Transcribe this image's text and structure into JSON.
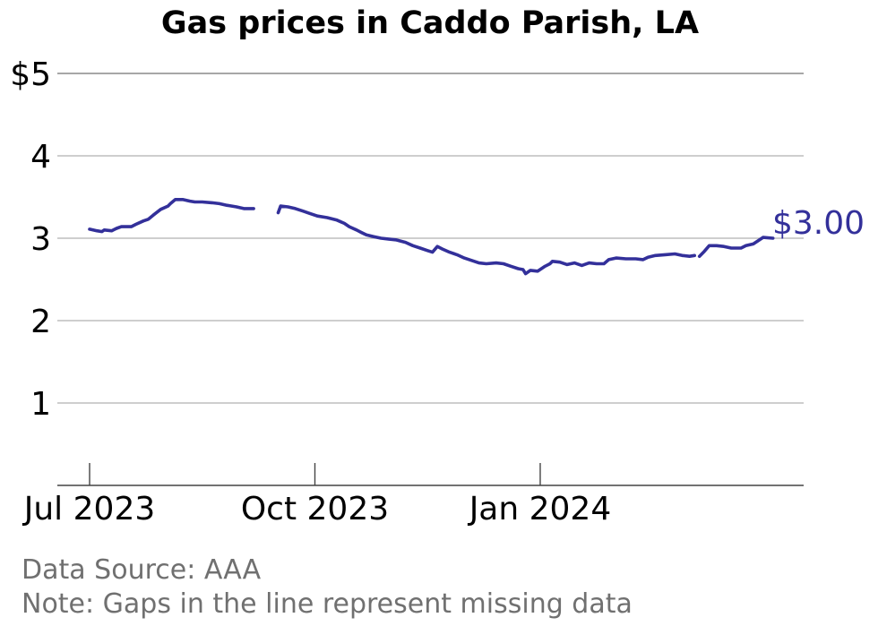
{
  "chart_data": {
    "type": "line",
    "title": "Gas prices in Caddo Parish, LA",
    "xlabel": "",
    "ylabel": "",
    "ylim": [
      0,
      5
    ],
    "xlim": [
      "2023-07-01",
      "2024-03-31"
    ],
    "y_ticks": [
      {
        "value": 1,
        "label": "1"
      },
      {
        "value": 2,
        "label": "2"
      },
      {
        "value": 3,
        "label": "3"
      },
      {
        "value": 4,
        "label": "4"
      },
      {
        "value": 5,
        "label": "$5"
      }
    ],
    "x_ticks": [
      {
        "date": "2023-07-01",
        "label": "Jul 2023"
      },
      {
        "date": "2023-10-01",
        "label": "Oct 2023"
      },
      {
        "date": "2024-01-01",
        "label": "Jan 2024"
      }
    ],
    "grid": true,
    "legend": "none",
    "end_label": "$3.00",
    "line_color": "#33309a",
    "series": [
      {
        "segments": [
          [
            [
              "2023-07-01",
              3.11
            ],
            [
              "2023-07-04",
              3.09
            ],
            [
              "2023-07-06",
              3.08
            ],
            [
              "2023-07-07",
              3.1
            ],
            [
              "2023-07-10",
              3.09
            ],
            [
              "2023-07-12",
              3.12
            ],
            [
              "2023-07-14",
              3.14
            ],
            [
              "2023-07-18",
              3.14
            ],
            [
              "2023-07-20",
              3.17
            ],
            [
              "2023-07-23",
              3.21
            ],
            [
              "2023-07-25",
              3.23
            ],
            [
              "2023-07-27",
              3.28
            ],
            [
              "2023-07-30",
              3.35
            ],
            [
              "2023-08-02",
              3.39
            ],
            [
              "2023-08-03",
              3.42
            ],
            [
              "2023-08-05",
              3.47
            ],
            [
              "2023-08-08",
              3.47
            ],
            [
              "2023-08-11",
              3.45
            ],
            [
              "2023-08-13",
              3.44
            ],
            [
              "2023-08-16",
              3.44
            ],
            [
              "2023-08-20",
              3.43
            ],
            [
              "2023-08-23",
              3.42
            ],
            [
              "2023-08-26",
              3.4
            ],
            [
              "2023-08-30",
              3.38
            ],
            [
              "2023-09-02",
              3.36
            ],
            [
              "2023-09-06",
              3.36
            ]
          ],
          [
            [
              "2023-09-16",
              3.31
            ],
            [
              "2023-09-17",
              3.39
            ],
            [
              "2023-09-20",
              3.38
            ],
            [
              "2023-09-23",
              3.36
            ],
            [
              "2023-09-26",
              3.33
            ],
            [
              "2023-09-29",
              3.3
            ],
            [
              "2023-10-02",
              3.27
            ],
            [
              "2023-10-06",
              3.25
            ],
            [
              "2023-10-10",
              3.22
            ],
            [
              "2023-10-13",
              3.18
            ],
            [
              "2023-10-15",
              3.14
            ],
            [
              "2023-10-18",
              3.1
            ],
            [
              "2023-10-20",
              3.07
            ],
            [
              "2023-10-22",
              3.04
            ],
            [
              "2023-10-25",
              3.02
            ],
            [
              "2023-10-28",
              3.0
            ],
            [
              "2023-10-31",
              2.99
            ],
            [
              "2023-11-03",
              2.98
            ],
            [
              "2023-11-07",
              2.95
            ],
            [
              "2023-11-10",
              2.91
            ],
            [
              "2023-11-13",
              2.88
            ],
            [
              "2023-11-16",
              2.85
            ],
            [
              "2023-11-18",
              2.83
            ],
            [
              "2023-11-20",
              2.9
            ],
            [
              "2023-11-22",
              2.87
            ],
            [
              "2023-11-25",
              2.83
            ],
            [
              "2023-11-28",
              2.8
            ],
            [
              "2023-12-01",
              2.76
            ],
            [
              "2023-12-04",
              2.73
            ],
            [
              "2023-12-07",
              2.7
            ],
            [
              "2023-12-10",
              2.69
            ],
            [
              "2023-12-14",
              2.7
            ],
            [
              "2023-12-17",
              2.69
            ],
            [
              "2023-12-20",
              2.66
            ],
            [
              "2023-12-23",
              2.63
            ],
            [
              "2023-12-25",
              2.62
            ],
            [
              "2023-12-26",
              2.57
            ],
            [
              "2023-12-28",
              2.61
            ],
            [
              "2023-12-31",
              2.6
            ],
            [
              "2024-01-03",
              2.66
            ],
            [
              "2024-01-05",
              2.69
            ],
            [
              "2024-01-06",
              2.72
            ],
            [
              "2024-01-09",
              2.71
            ],
            [
              "2024-01-12",
              2.68
            ],
            [
              "2024-01-15",
              2.7
            ],
            [
              "2024-01-18",
              2.67
            ],
            [
              "2024-01-21",
              2.7
            ],
            [
              "2024-01-24",
              2.69
            ],
            [
              "2024-01-27",
              2.69
            ],
            [
              "2024-01-29",
              2.74
            ],
            [
              "2024-02-01",
              2.76
            ],
            [
              "2024-02-05",
              2.75
            ],
            [
              "2024-02-09",
              2.75
            ],
            [
              "2024-02-12",
              2.74
            ],
            [
              "2024-02-14",
              2.77
            ],
            [
              "2024-02-17",
              2.79
            ],
            [
              "2024-02-21",
              2.8
            ],
            [
              "2024-02-25",
              2.81
            ],
            [
              "2024-02-28",
              2.79
            ],
            [
              "2024-03-02",
              2.78
            ],
            [
              "2024-03-04",
              2.79
            ]
          ],
          [
            [
              "2024-03-06",
              2.78
            ],
            [
              "2024-03-08",
              2.84
            ],
            [
              "2024-03-10",
              2.91
            ],
            [
              "2024-03-13",
              2.91
            ],
            [
              "2024-03-16",
              2.9
            ],
            [
              "2024-03-19",
              2.88
            ],
            [
              "2024-03-23",
              2.88
            ],
            [
              "2024-03-25",
              2.91
            ],
            [
              "2024-03-28",
              2.93
            ],
            [
              "2024-03-30",
              2.97
            ],
            [
              "2024-04-01",
              3.01
            ],
            [
              "2024-04-05",
              3.0
            ]
          ]
        ]
      }
    ]
  },
  "footnotes": {
    "source": "Data Source: AAA",
    "note": "Note: Gaps in the line represent missing data"
  }
}
